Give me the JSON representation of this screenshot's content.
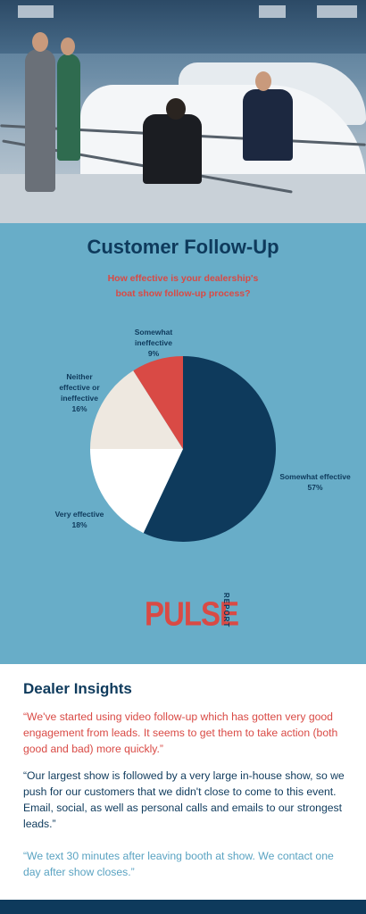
{
  "chart_section": {
    "title": "Customer Follow-Up",
    "subtitle_line1": "How effective is your dealership's",
    "subtitle_line2": "boat show follow-up process?"
  },
  "chart_data": {
    "type": "pie",
    "title": "Customer Follow-Up",
    "subtitle": "How effective is your dealership's boat show follow-up process?",
    "slices": [
      {
        "label_lines": [
          "Somewhat effective"
        ],
        "value": 57,
        "pct_label": "57%",
        "color": "#0e3a5c"
      },
      {
        "label_lines": [
          "Very effective"
        ],
        "value": 18,
        "pct_label": "18%",
        "color": "#ffffff"
      },
      {
        "label_lines": [
          "Neither",
          "effective or",
          "ineffective"
        ],
        "value": 16,
        "pct_label": "16%",
        "color": "#eee8e0"
      },
      {
        "label_lines": [
          "Somewhat",
          "ineffective"
        ],
        "value": 9,
        "pct_label": "9%",
        "color": "#d94a45"
      }
    ]
  },
  "logo": {
    "main": "PULSE",
    "side": "REPORT"
  },
  "insights": {
    "title": "Dealer Insights",
    "quote1": "“We've started using video follow-up which has gotten very good engagement from leads. It seems to get them to take action (both good and bad) more quickly.”",
    "quote2": "“Our largest show is followed by a very large in-house show, so we push for our customers that we didn't close to come to this event. Email, social, as well as personal calls and emails to our strongest leads.”",
    "quote3": "“We text 30 minutes after leaving booth at show. We contact one day after show closes.”"
  },
  "colors": {
    "navy": "#0e3a5c",
    "red": "#d94a45",
    "sky": "#68adc8",
    "light_blue": "#5aa3c2"
  }
}
